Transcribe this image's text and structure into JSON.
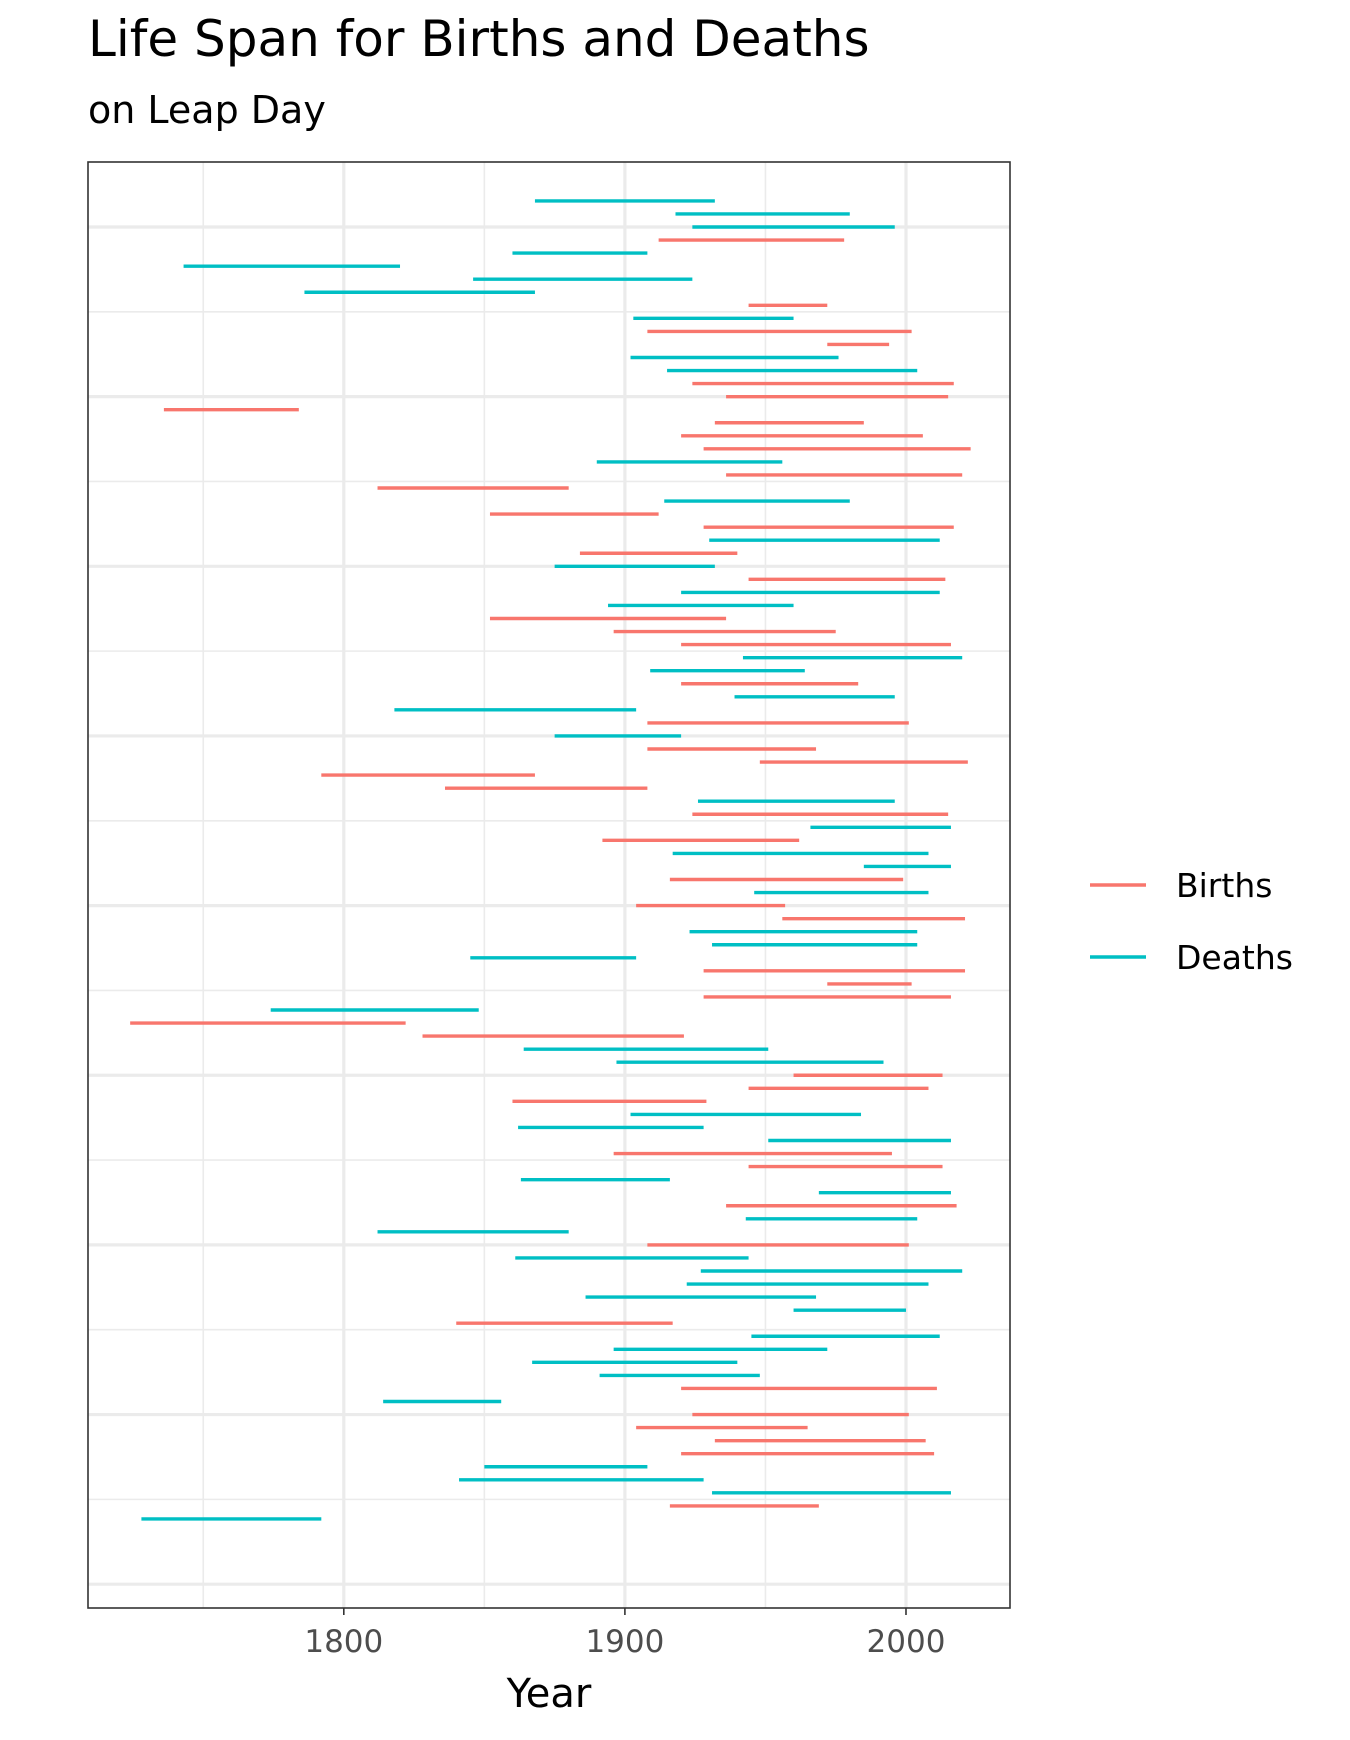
{
  "chart_data": {
    "type": "line",
    "title": "Life Span for Births and Deaths",
    "subtitle": "on Leap Day",
    "xlabel": "Year",
    "ylabel": "",
    "xlim": [
      1709,
      2037
    ],
    "x_ticks": [
      1800,
      1900,
      2000
    ],
    "x_minor_ticks": [
      1750,
      1850,
      1950
    ],
    "grid": true,
    "legend_position": "right",
    "legend_title": "",
    "series": [
      {
        "name": "Births",
        "color": "#F8766D"
      },
      {
        "name": "Deaths",
        "color": "#00BFC4"
      }
    ],
    "segments": [
      {
        "series": "Deaths",
        "start": 1868,
        "end": 1932
      },
      {
        "series": "Deaths",
        "start": 1918,
        "end": 1980
      },
      {
        "series": "Deaths",
        "start": 1924,
        "end": 1996
      },
      {
        "series": "Births",
        "start": 1912,
        "end": 1978
      },
      {
        "series": "Deaths",
        "start": 1860,
        "end": 1908
      },
      {
        "series": "Deaths",
        "start": 1743,
        "end": 1820
      },
      {
        "series": "Deaths",
        "start": 1846,
        "end": 1924
      },
      {
        "series": "Deaths",
        "start": 1786,
        "end": 1868
      },
      {
        "series": "Births",
        "start": 1944,
        "end": 1972
      },
      {
        "series": "Deaths",
        "start": 1903,
        "end": 1960
      },
      {
        "series": "Births",
        "start": 1908,
        "end": 2002
      },
      {
        "series": "Births",
        "start": 1972,
        "end": 1994
      },
      {
        "series": "Deaths",
        "start": 1902,
        "end": 1976
      },
      {
        "series": "Deaths",
        "start": 1915,
        "end": 2004
      },
      {
        "series": "Births",
        "start": 1924,
        "end": 2017
      },
      {
        "series": "Births",
        "start": 1936,
        "end": 2015
      },
      {
        "series": "Births",
        "start": 1736,
        "end": 1784
      },
      {
        "series": "Births",
        "start": 1932,
        "end": 1985
      },
      {
        "series": "Births",
        "start": 1920,
        "end": 2006
      },
      {
        "series": "Births",
        "start": 1928,
        "end": 2023
      },
      {
        "series": "Deaths",
        "start": 1890,
        "end": 1956
      },
      {
        "series": "Births",
        "start": 1936,
        "end": 2020
      },
      {
        "series": "Births",
        "start": 1812,
        "end": 1880
      },
      {
        "series": "Deaths",
        "start": 1914,
        "end": 1980
      },
      {
        "series": "Births",
        "start": 1852,
        "end": 1912
      },
      {
        "series": "Births",
        "start": 1928,
        "end": 2017
      },
      {
        "series": "Deaths",
        "start": 1930,
        "end": 2012
      },
      {
        "series": "Births",
        "start": 1884,
        "end": 1940
      },
      {
        "series": "Deaths",
        "start": 1875,
        "end": 1932
      },
      {
        "series": "Births",
        "start": 1944,
        "end": 2014
      },
      {
        "series": "Deaths",
        "start": 1920,
        "end": 2012
      },
      {
        "series": "Deaths",
        "start": 1894,
        "end": 1960
      },
      {
        "series": "Births",
        "start": 1852,
        "end": 1936
      },
      {
        "series": "Births",
        "start": 1896,
        "end": 1975
      },
      {
        "series": "Births",
        "start": 1920,
        "end": 2016
      },
      {
        "series": "Deaths",
        "start": 1942,
        "end": 2020
      },
      {
        "series": "Deaths",
        "start": 1909,
        "end": 1964
      },
      {
        "series": "Births",
        "start": 1920,
        "end": 1983
      },
      {
        "series": "Deaths",
        "start": 1939,
        "end": 1996
      },
      {
        "series": "Deaths",
        "start": 1818,
        "end": 1904
      },
      {
        "series": "Births",
        "start": 1908,
        "end": 2001
      },
      {
        "series": "Deaths",
        "start": 1875,
        "end": 1920
      },
      {
        "series": "Births",
        "start": 1908,
        "end": 1968
      },
      {
        "series": "Births",
        "start": 1948,
        "end": 2022
      },
      {
        "series": "Births",
        "start": 1792,
        "end": 1868
      },
      {
        "series": "Births",
        "start": 1836,
        "end": 1908
      },
      {
        "series": "Deaths",
        "start": 1926,
        "end": 1996
      },
      {
        "series": "Births",
        "start": 1924,
        "end": 2015
      },
      {
        "series": "Deaths",
        "start": 1966,
        "end": 2016
      },
      {
        "series": "Births",
        "start": 1892,
        "end": 1962
      },
      {
        "series": "Deaths",
        "start": 1917,
        "end": 2008
      },
      {
        "series": "Deaths",
        "start": 1985,
        "end": 2016
      },
      {
        "series": "Births",
        "start": 1916,
        "end": 1999
      },
      {
        "series": "Deaths",
        "start": 1946,
        "end": 2008
      },
      {
        "series": "Births",
        "start": 1904,
        "end": 1957
      },
      {
        "series": "Births",
        "start": 1956,
        "end": 2021
      },
      {
        "series": "Deaths",
        "start": 1923,
        "end": 2004
      },
      {
        "series": "Deaths",
        "start": 1931,
        "end": 2004
      },
      {
        "series": "Deaths",
        "start": 1845,
        "end": 1904
      },
      {
        "series": "Births",
        "start": 1928,
        "end": 2021
      },
      {
        "series": "Births",
        "start": 1972,
        "end": 2002
      },
      {
        "series": "Births",
        "start": 1928,
        "end": 2016
      },
      {
        "series": "Deaths",
        "start": 1774,
        "end": 1848
      },
      {
        "series": "Births",
        "start": 1724,
        "end": 1822
      },
      {
        "series": "Births",
        "start": 1828,
        "end": 1921
      },
      {
        "series": "Deaths",
        "start": 1864,
        "end": 1951
      },
      {
        "series": "Deaths",
        "start": 1897,
        "end": 1992
      },
      {
        "series": "Births",
        "start": 1960,
        "end": 2013
      },
      {
        "series": "Births",
        "start": 1944,
        "end": 2008
      },
      {
        "series": "Births",
        "start": 1860,
        "end": 1929
      },
      {
        "series": "Deaths",
        "start": 1902,
        "end": 1984
      },
      {
        "series": "Deaths",
        "start": 1862,
        "end": 1928
      },
      {
        "series": "Deaths",
        "start": 1951,
        "end": 2016
      },
      {
        "series": "Births",
        "start": 1896,
        "end": 1995
      },
      {
        "series": "Births",
        "start": 1944,
        "end": 2013
      },
      {
        "series": "Deaths",
        "start": 1863,
        "end": 1916
      },
      {
        "series": "Deaths",
        "start": 1969,
        "end": 2016
      },
      {
        "series": "Births",
        "start": 1936,
        "end": 2018
      },
      {
        "series": "Deaths",
        "start": 1943,
        "end": 2004
      },
      {
        "series": "Deaths",
        "start": 1812,
        "end": 1880
      },
      {
        "series": "Births",
        "start": 1908,
        "end": 2001
      },
      {
        "series": "Deaths",
        "start": 1861,
        "end": 1944
      },
      {
        "series": "Deaths",
        "start": 1927,
        "end": 2020
      },
      {
        "series": "Deaths",
        "start": 1922,
        "end": 2008
      },
      {
        "series": "Deaths",
        "start": 1886,
        "end": 1968
      },
      {
        "series": "Deaths",
        "start": 1960,
        "end": 2000
      },
      {
        "series": "Births",
        "start": 1840,
        "end": 1917
      },
      {
        "series": "Deaths",
        "start": 1945,
        "end": 2012
      },
      {
        "series": "Deaths",
        "start": 1896,
        "end": 1972
      },
      {
        "series": "Deaths",
        "start": 1867,
        "end": 1940
      },
      {
        "series": "Deaths",
        "start": 1891,
        "end": 1948
      },
      {
        "series": "Births",
        "start": 1920,
        "end": 2011
      },
      {
        "series": "Deaths",
        "start": 1814,
        "end": 1856
      },
      {
        "series": "Births",
        "start": 1924,
        "end": 2001
      },
      {
        "series": "Births",
        "start": 1904,
        "end": 1965
      },
      {
        "series": "Births",
        "start": 1932,
        "end": 2007
      },
      {
        "series": "Births",
        "start": 1920,
        "end": 2010
      },
      {
        "series": "Deaths",
        "start": 1850,
        "end": 1908
      },
      {
        "series": "Deaths",
        "start": 1841,
        "end": 1928
      },
      {
        "series": "Deaths",
        "start": 1931,
        "end": 2016
      },
      {
        "series": "Births",
        "start": 1916,
        "end": 1969
      },
      {
        "series": "Deaths",
        "start": 1728,
        "end": 1792
      }
    ]
  }
}
